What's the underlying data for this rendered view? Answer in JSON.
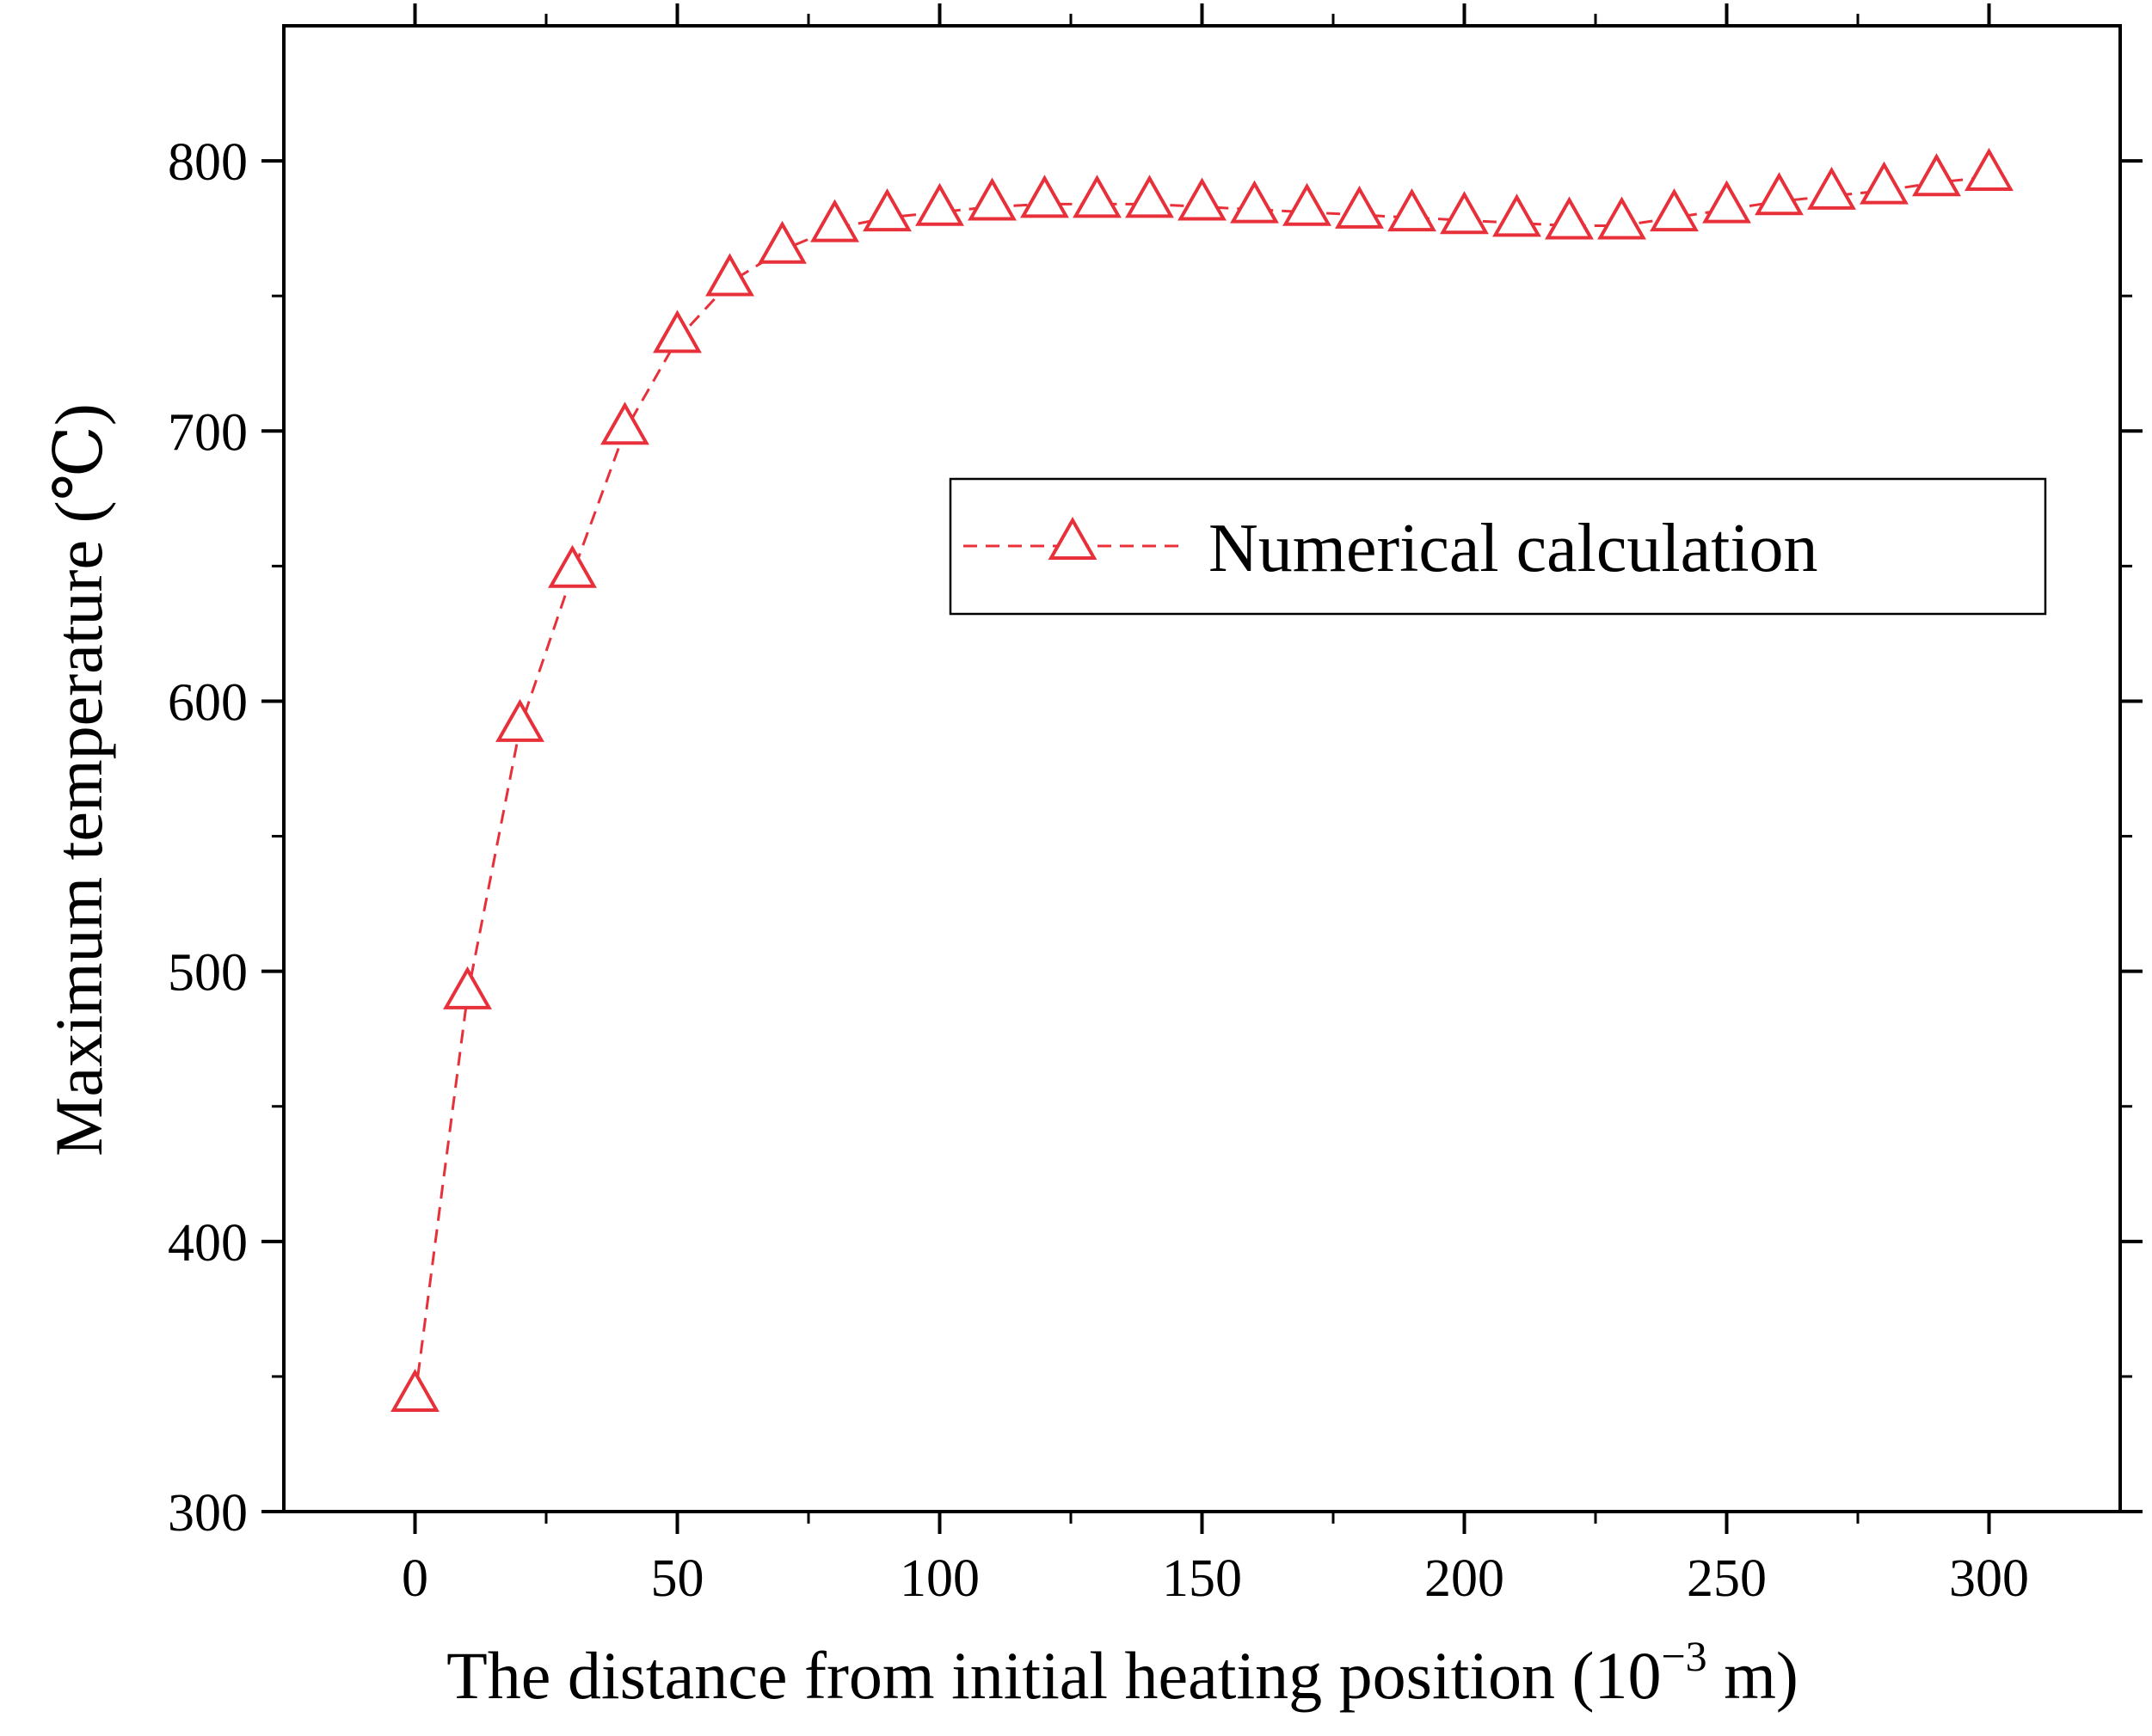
{
  "chart_data": {
    "type": "line",
    "title": "",
    "xlabel_main": "The distance from initial heating position (10",
    "xlabel_sup": "−3",
    "xlabel_end": " m)",
    "ylabel": "Maximum temperature (℃)",
    "xlim": [
      -25,
      325
    ],
    "ylim": [
      300,
      850
    ],
    "x_ticks": [
      0,
      50,
      100,
      150,
      200,
      250,
      300
    ],
    "x_tick_labels": [
      "0",
      "50",
      "100",
      "150",
      "200",
      "250",
      "300"
    ],
    "y_ticks": [
      300,
      400,
      500,
      600,
      700,
      800
    ],
    "y_tick_labels": [
      "300",
      "400",
      "500",
      "600",
      "700",
      "800"
    ],
    "grid": false,
    "legend_position": "upper-right",
    "series": [
      {
        "name": "Numerical calculation",
        "color": "#e8303a",
        "marker": "triangle-open",
        "line_style": "dashed",
        "x": [
          0,
          10,
          20,
          30,
          40,
          50,
          60,
          70,
          80,
          90,
          100,
          110,
          120,
          130,
          140,
          150,
          160,
          170,
          180,
          190,
          200,
          210,
          220,
          230,
          240,
          250,
          260,
          270,
          280,
          290,
          300
        ],
        "y": [
          342,
          491,
          590,
          647,
          700,
          734,
          755,
          767,
          775,
          779,
          781,
          783,
          784,
          784,
          784,
          783,
          782,
          781,
          780,
          779,
          778,
          777,
          776,
          776,
          779,
          782,
          785,
          787,
          789,
          792,
          794
        ]
      }
    ]
  }
}
